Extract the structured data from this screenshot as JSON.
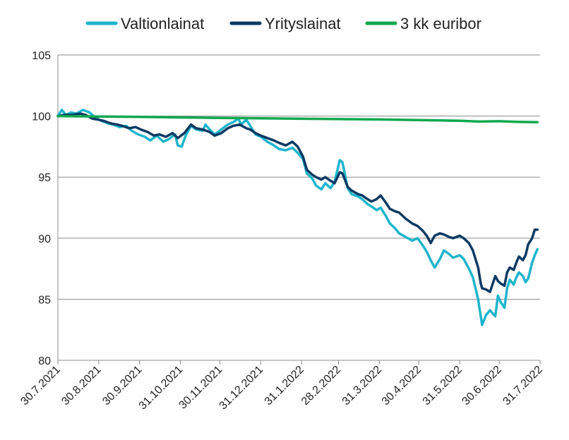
{
  "chart_data": {
    "type": "line",
    "title": "",
    "xlabel": "",
    "ylabel": "",
    "ylim": [
      80,
      105
    ],
    "yticks": [
      80,
      85,
      90,
      95,
      100,
      105
    ],
    "grid": "horizontal",
    "legend_position": "top",
    "x_tick_labels": [
      "30.7.2021",
      "30.8.2021",
      "30.9.2021",
      "31.10.2021",
      "30.11.2021",
      "31.12.2021",
      "31.1.2022",
      "28.2.2022",
      "31.3.2022",
      "30.4.2022",
      "31.5.2022",
      "30.6.2022",
      "31.7.2022"
    ],
    "series": [
      {
        "name": "Valtionlainat",
        "color": "#1fb5cc",
        "points": [
          [
            "2021-07-30",
            100.0
          ],
          [
            "2021-08-02",
            100.5
          ],
          [
            "2021-08-05",
            100.1
          ],
          [
            "2021-08-09",
            100.3
          ],
          [
            "2021-08-13",
            100.2
          ],
          [
            "2021-08-18",
            100.5
          ],
          [
            "2021-08-23",
            100.3
          ],
          [
            "2021-08-27",
            99.9
          ],
          [
            "2021-09-01",
            99.6
          ],
          [
            "2021-09-06",
            99.4
          ],
          [
            "2021-09-10",
            99.3
          ],
          [
            "2021-09-15",
            99.1
          ],
          [
            "2021-09-20",
            99.2
          ],
          [
            "2021-09-24",
            98.8
          ],
          [
            "2021-09-29",
            98.5
          ],
          [
            "2021-10-04",
            98.3
          ],
          [
            "2021-10-08",
            98.0
          ],
          [
            "2021-10-13",
            98.4
          ],
          [
            "2021-10-18",
            97.9
          ],
          [
            "2021-10-22",
            98.1
          ],
          [
            "2021-10-27",
            98.5
          ],
          [
            "2021-10-29",
            97.6
          ],
          [
            "2021-11-01",
            97.5
          ],
          [
            "2021-11-04",
            98.4
          ],
          [
            "2021-11-08",
            99.2
          ],
          [
            "2021-11-12",
            98.9
          ],
          [
            "2021-11-17",
            98.8
          ],
          [
            "2021-11-19",
            99.3
          ],
          [
            "2021-11-23",
            98.8
          ],
          [
            "2021-11-26",
            98.5
          ],
          [
            "2021-12-01",
            98.9
          ],
          [
            "2021-12-06",
            99.3
          ],
          [
            "2021-12-10",
            99.5
          ],
          [
            "2021-12-14",
            99.8
          ],
          [
            "2021-12-16",
            99.3
          ],
          [
            "2021-12-20",
            99.7
          ],
          [
            "2021-12-23",
            99.2
          ],
          [
            "2021-12-27",
            98.5
          ],
          [
            "2021-12-31",
            98.3
          ],
          [
            "2022-01-05",
            97.9
          ],
          [
            "2022-01-10",
            97.6
          ],
          [
            "2022-01-14",
            97.3
          ],
          [
            "2022-01-19",
            97.2
          ],
          [
            "2022-01-24",
            97.4
          ],
          [
            "2022-01-28",
            97.0
          ],
          [
            "2022-02-01",
            96.5
          ],
          [
            "2022-02-04",
            95.3
          ],
          [
            "2022-02-08",
            94.9
          ],
          [
            "2022-02-11",
            94.3
          ],
          [
            "2022-02-15",
            94.0
          ],
          [
            "2022-02-18",
            94.5
          ],
          [
            "2022-02-22",
            94.1
          ],
          [
            "2022-02-25",
            94.6
          ],
          [
            "2022-03-01",
            96.4
          ],
          [
            "2022-03-03",
            96.2
          ],
          [
            "2022-03-07",
            94.1
          ],
          [
            "2022-03-10",
            93.6
          ],
          [
            "2022-03-15",
            93.4
          ],
          [
            "2022-03-18",
            93.2
          ],
          [
            "2022-03-22",
            92.8
          ],
          [
            "2022-03-25",
            92.6
          ],
          [
            "2022-03-29",
            92.3
          ],
          [
            "2022-04-01",
            92.5
          ],
          [
            "2022-04-05",
            91.8
          ],
          [
            "2022-04-08",
            91.2
          ],
          [
            "2022-04-12",
            90.8
          ],
          [
            "2022-04-15",
            90.4
          ],
          [
            "2022-04-20",
            90.1
          ],
          [
            "2022-04-25",
            89.8
          ],
          [
            "2022-04-29",
            90.0
          ],
          [
            "2022-05-03",
            89.4
          ],
          [
            "2022-05-06",
            88.9
          ],
          [
            "2022-05-09",
            88.2
          ],
          [
            "2022-05-12",
            87.6
          ],
          [
            "2022-05-16",
            88.3
          ],
          [
            "2022-05-19",
            89.0
          ],
          [
            "2022-05-23",
            88.7
          ],
          [
            "2022-05-26",
            88.4
          ],
          [
            "2022-05-31",
            88.6
          ],
          [
            "2022-06-03",
            88.3
          ],
          [
            "2022-06-07",
            87.5
          ],
          [
            "2022-06-10",
            86.8
          ],
          [
            "2022-06-14",
            85.0
          ],
          [
            "2022-06-16",
            83.6
          ],
          [
            "2022-06-17",
            82.9
          ],
          [
            "2022-06-20",
            83.7
          ],
          [
            "2022-06-23",
            84.1
          ],
          [
            "2022-06-27",
            83.6
          ],
          [
            "2022-06-29",
            85.3
          ],
          [
            "2022-07-01",
            84.8
          ],
          [
            "2022-07-04",
            84.3
          ],
          [
            "2022-07-06",
            85.9
          ],
          [
            "2022-07-08",
            86.6
          ],
          [
            "2022-07-11",
            86.2
          ],
          [
            "2022-07-13",
            86.8
          ],
          [
            "2022-07-15",
            87.2
          ],
          [
            "2022-07-18",
            86.9
          ],
          [
            "2022-07-20",
            86.4
          ],
          [
            "2022-07-22",
            86.7
          ],
          [
            "2022-07-25",
            88.0
          ],
          [
            "2022-07-27",
            88.6
          ],
          [
            "2022-07-29",
            89.1
          ]
        ]
      },
      {
        "name": "Yrityslainat",
        "color": "#0d3a63",
        "points": [
          [
            "2021-07-30",
            100.0
          ],
          [
            "2021-08-04",
            100.1
          ],
          [
            "2021-08-10",
            100.1
          ],
          [
            "2021-08-16",
            100.2
          ],
          [
            "2021-08-20",
            100.1
          ],
          [
            "2021-08-25",
            99.8
          ],
          [
            "2021-08-30",
            99.7
          ],
          [
            "2021-09-03",
            99.6
          ],
          [
            "2021-09-08",
            99.4
          ],
          [
            "2021-09-13",
            99.3
          ],
          [
            "2021-09-17",
            99.2
          ],
          [
            "2021-09-22",
            99.0
          ],
          [
            "2021-09-27",
            99.1
          ],
          [
            "2021-10-01",
            98.9
          ],
          [
            "2021-10-06",
            98.7
          ],
          [
            "2021-10-11",
            98.4
          ],
          [
            "2021-10-15",
            98.5
          ],
          [
            "2021-10-20",
            98.3
          ],
          [
            "2021-10-25",
            98.6
          ],
          [
            "2021-10-29",
            98.2
          ],
          [
            "2021-11-03",
            98.6
          ],
          [
            "2021-11-08",
            99.3
          ],
          [
            "2021-11-12",
            99.0
          ],
          [
            "2021-11-17",
            98.9
          ],
          [
            "2021-11-22",
            98.7
          ],
          [
            "2021-11-26",
            98.4
          ],
          [
            "2021-12-01",
            98.6
          ],
          [
            "2021-12-06",
            99.0
          ],
          [
            "2021-12-10",
            99.2
          ],
          [
            "2021-12-15",
            99.3
          ],
          [
            "2021-12-20",
            99.0
          ],
          [
            "2021-12-23",
            98.9
          ],
          [
            "2021-12-27",
            98.6
          ],
          [
            "2021-12-31",
            98.4
          ],
          [
            "2022-01-05",
            98.2
          ],
          [
            "2022-01-10",
            98.0
          ],
          [
            "2022-01-14",
            97.8
          ],
          [
            "2022-01-19",
            97.6
          ],
          [
            "2022-01-24",
            97.9
          ],
          [
            "2022-01-28",
            97.5
          ],
          [
            "2022-02-01",
            96.7
          ],
          [
            "2022-02-04",
            95.6
          ],
          [
            "2022-02-08",
            95.2
          ],
          [
            "2022-02-11",
            95.0
          ],
          [
            "2022-02-15",
            94.8
          ],
          [
            "2022-02-18",
            95.0
          ],
          [
            "2022-02-22",
            94.7
          ],
          [
            "2022-02-25",
            94.5
          ],
          [
            "2022-03-01",
            95.4
          ],
          [
            "2022-03-03",
            95.3
          ],
          [
            "2022-03-07",
            94.2
          ],
          [
            "2022-03-10",
            93.9
          ],
          [
            "2022-03-15",
            93.6
          ],
          [
            "2022-03-18",
            93.5
          ],
          [
            "2022-03-22",
            93.2
          ],
          [
            "2022-03-25",
            93.0
          ],
          [
            "2022-03-29",
            93.2
          ],
          [
            "2022-04-01",
            93.5
          ],
          [
            "2022-04-05",
            92.9
          ],
          [
            "2022-04-08",
            92.4
          ],
          [
            "2022-04-12",
            92.2
          ],
          [
            "2022-04-15",
            92.1
          ],
          [
            "2022-04-20",
            91.6
          ],
          [
            "2022-04-25",
            91.2
          ],
          [
            "2022-04-29",
            91.0
          ],
          [
            "2022-05-03",
            90.6
          ],
          [
            "2022-05-06",
            90.2
          ],
          [
            "2022-05-09",
            89.6
          ],
          [
            "2022-05-12",
            90.2
          ],
          [
            "2022-05-16",
            90.4
          ],
          [
            "2022-05-19",
            90.3
          ],
          [
            "2022-05-23",
            90.1
          ],
          [
            "2022-05-26",
            90.0
          ],
          [
            "2022-05-31",
            90.2
          ],
          [
            "2022-06-03",
            90.0
          ],
          [
            "2022-06-07",
            89.6
          ],
          [
            "2022-06-10",
            89.0
          ],
          [
            "2022-06-14",
            87.6
          ],
          [
            "2022-06-16",
            86.3
          ],
          [
            "2022-06-17",
            85.9
          ],
          [
            "2022-06-20",
            85.8
          ],
          [
            "2022-06-23",
            85.6
          ],
          [
            "2022-06-27",
            86.9
          ],
          [
            "2022-06-29",
            86.5
          ],
          [
            "2022-07-01",
            86.3
          ],
          [
            "2022-07-04",
            86.1
          ],
          [
            "2022-07-06",
            87.2
          ],
          [
            "2022-07-08",
            87.6
          ],
          [
            "2022-07-11",
            87.4
          ],
          [
            "2022-07-13",
            88.0
          ],
          [
            "2022-07-15",
            88.5
          ],
          [
            "2022-07-18",
            88.2
          ],
          [
            "2022-07-20",
            88.6
          ],
          [
            "2022-07-22",
            89.5
          ],
          [
            "2022-07-25",
            90.0
          ],
          [
            "2022-07-27",
            90.7
          ],
          [
            "2022-07-29",
            90.7
          ]
        ]
      },
      {
        "name": "3 kk euribor",
        "color": "#10a84e",
        "points": [
          [
            "2021-07-30",
            100.0
          ],
          [
            "2021-09-30",
            99.93
          ],
          [
            "2021-11-30",
            99.85
          ],
          [
            "2022-01-31",
            99.78
          ],
          [
            "2022-03-31",
            99.72
          ],
          [
            "2022-05-31",
            99.62
          ],
          [
            "2022-06-15",
            99.55
          ],
          [
            "2022-06-30",
            99.58
          ],
          [
            "2022-07-15",
            99.52
          ],
          [
            "2022-07-29",
            99.5
          ]
        ]
      }
    ]
  }
}
